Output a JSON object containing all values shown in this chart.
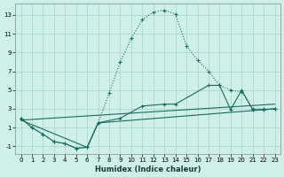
{
  "xlabel": "Humidex (Indice chaleur)",
  "bg_color": "#cff0ea",
  "grid_color": "#aed8d0",
  "line_color": "#1a6b5a",
  "xlim": [
    -0.5,
    23.5
  ],
  "ylim": [
    -1.8,
    14.2
  ],
  "xticks": [
    0,
    1,
    2,
    3,
    4,
    5,
    6,
    7,
    8,
    9,
    10,
    11,
    12,
    13,
    14,
    15,
    16,
    17,
    18,
    19,
    20,
    21,
    22,
    23
  ],
  "yticks": [
    -1,
    1,
    3,
    5,
    7,
    9,
    11,
    13
  ],
  "series1_x": [
    0,
    1,
    2,
    3,
    4,
    5,
    6,
    7,
    8,
    9,
    10,
    11,
    12,
    13,
    14,
    15,
    16,
    17,
    18,
    19,
    20,
    21,
    22,
    23
  ],
  "series1_y": [
    2.0,
    1.0,
    0.3,
    -0.5,
    -0.7,
    -1.2,
    -1.1,
    1.5,
    4.7,
    8.0,
    10.5,
    12.5,
    13.3,
    13.5,
    13.1,
    9.7,
    8.2,
    7.0,
    5.5,
    5.0,
    4.8,
    3.0,
    3.0,
    3.0
  ],
  "series2_x": [
    0,
    1,
    2,
    3,
    4,
    5,
    6,
    7,
    9,
    11,
    13,
    14,
    17,
    18,
    19,
    20,
    21,
    22,
    23
  ],
  "series2_y": [
    2.0,
    1.0,
    0.3,
    -0.5,
    -0.7,
    -1.2,
    -1.1,
    1.5,
    2.0,
    3.3,
    3.5,
    3.5,
    5.5,
    5.5,
    2.9,
    5.0,
    2.9,
    2.9,
    3.0
  ],
  "series3_x": [
    0,
    6,
    7,
    23
  ],
  "series3_y": [
    1.8,
    -1.1,
    1.5,
    3.0
  ],
  "series4_x": [
    0,
    23
  ],
  "series4_y": [
    1.8,
    3.5
  ]
}
